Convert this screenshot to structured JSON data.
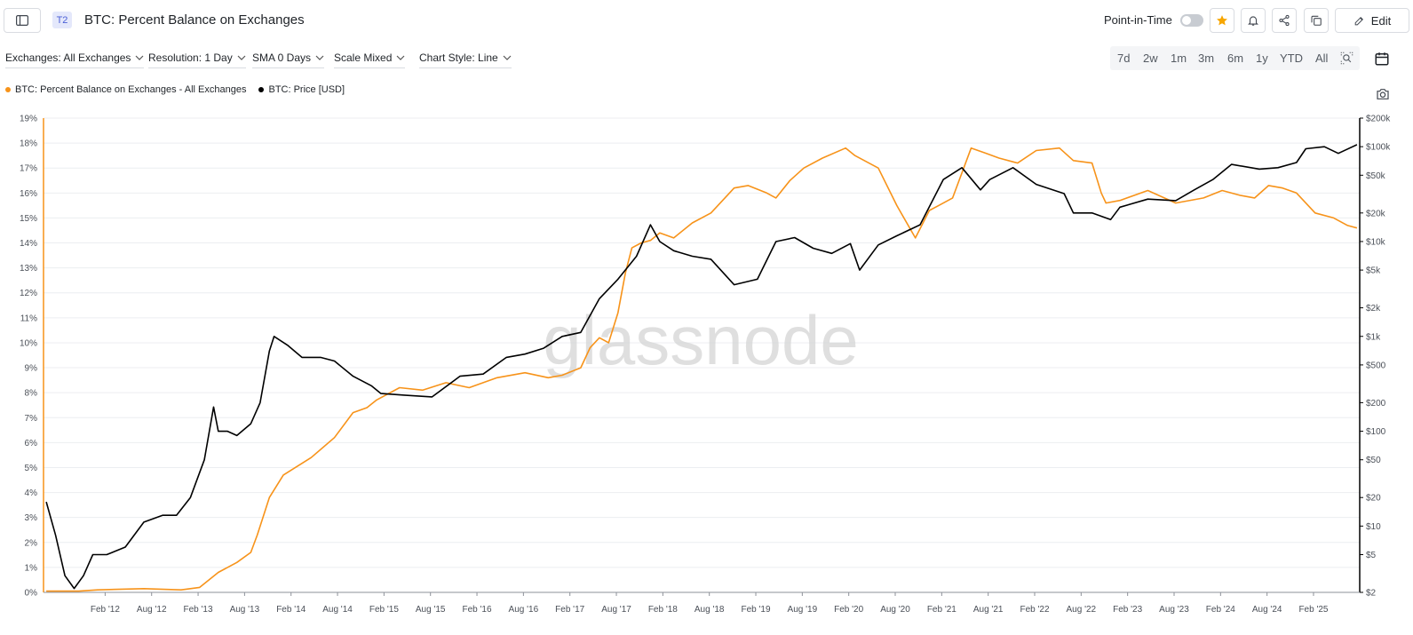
{
  "header": {
    "tier_badge": "T2",
    "title": "BTC: Percent Balance on Exchanges",
    "point_in_time_label": "Point-in-Time",
    "edit_label": "Edit"
  },
  "filters": [
    {
      "label": "Exchanges: All Exchanges"
    },
    {
      "label": "Resolution: 1 Day"
    },
    {
      "label": "SMA 0 Days"
    },
    {
      "label": "Scale Mixed"
    },
    {
      "label": "Chart Style: Line"
    }
  ],
  "time_ranges": [
    "7d",
    "2w",
    "1m",
    "3m",
    "6m",
    "1y",
    "YTD",
    "All"
  ],
  "colors": {
    "balance": "#f7931a",
    "price": "#000000",
    "star": "#f7a600",
    "grid": "#eceef1"
  },
  "watermark": "glassnode",
  "chart_data": {
    "type": "line",
    "legend_placement": "top-left",
    "grid": true,
    "x_ticks": [
      "Feb '12",
      "Aug '12",
      "Feb '13",
      "Aug '13",
      "Feb '14",
      "Aug '14",
      "Feb '15",
      "Aug '15",
      "Feb '16",
      "Aug '16",
      "Feb '17",
      "Aug '17",
      "Feb '18",
      "Aug '18",
      "Feb '19",
      "Aug '19",
      "Feb '20",
      "Aug '20",
      "Feb '21",
      "Aug '21",
      "Feb '22",
      "Aug '22",
      "Feb '23",
      "Aug '23",
      "Feb '24",
      "Aug '24",
      "Feb '25"
    ],
    "x_range": [
      2011.42,
      2025.58
    ],
    "y_left": {
      "ticks": [
        "0%",
        "1%",
        "2%",
        "3%",
        "4%",
        "5%",
        "6%",
        "7%",
        "8%",
        "9%",
        "10%",
        "11%",
        "12%",
        "13%",
        "14%",
        "15%",
        "16%",
        "17%",
        "18%",
        "19%"
      ],
      "range": [
        0,
        19
      ],
      "unit": "%"
    },
    "y_right": {
      "scale": "log",
      "range": [
        2,
        200000
      ],
      "ticks": [
        {
          "label": "$2",
          "value": 2
        },
        {
          "label": "$5",
          "value": 5
        },
        {
          "label": "$10",
          "value": 10
        },
        {
          "label": "$20",
          "value": 20
        },
        {
          "label": "$50",
          "value": 50
        },
        {
          "label": "$100",
          "value": 100
        },
        {
          "label": "$200",
          "value": 200
        },
        {
          "label": "$500",
          "value": 500
        },
        {
          "label": "$1k",
          "value": 1000
        },
        {
          "label": "$2k",
          "value": 2000
        },
        {
          "label": "$5k",
          "value": 5000
        },
        {
          "label": "$10k",
          "value": 10000
        },
        {
          "label": "$20k",
          "value": 20000
        },
        {
          "label": "$50k",
          "value": 50000
        },
        {
          "label": "$100k",
          "value": 100000
        },
        {
          "label": "$200k",
          "value": 200000
        }
      ]
    },
    "series": [
      {
        "name": "BTC: Percent Balance on Exchanges - All Exchanges",
        "axis": "left",
        "x": [
          2011.45,
          2011.6,
          2011.8,
          2012.0,
          2012.5,
          2012.9,
          2013.1,
          2013.3,
          2013.5,
          2013.65,
          2013.72,
          2013.85,
          2014.0,
          2014.3,
          2014.55,
          2014.75,
          2014.9,
          2015.0,
          2015.25,
          2015.5,
          2015.75,
          2016.0,
          2016.3,
          2016.6,
          2016.85,
          2017.0,
          2017.2,
          2017.3,
          2017.4,
          2017.5,
          2017.6,
          2017.68,
          2017.75,
          2017.85,
          2017.95,
          2018.05,
          2018.2,
          2018.4,
          2018.6,
          2018.75,
          2018.85,
          2019.0,
          2019.2,
          2019.3,
          2019.45,
          2019.6,
          2019.8,
          2020.05,
          2020.15,
          2020.4,
          2020.6,
          2020.8,
          2020.95,
          2021.05,
          2021.2,
          2021.4,
          2021.55,
          2021.7,
          2021.9,
          2022.1,
          2022.35,
          2022.5,
          2022.7,
          2022.8,
          2022.85,
          2023.0,
          2023.3,
          2023.6,
          2023.9,
          2024.1,
          2024.3,
          2024.45,
          2024.6,
          2024.75,
          2024.9,
          2025.1,
          2025.3,
          2025.45,
          2025.55
        ],
        "values": [
          0.05,
          0.05,
          0.05,
          0.1,
          0.15,
          0.1,
          0.2,
          0.8,
          1.2,
          1.6,
          2.3,
          3.8,
          4.7,
          5.4,
          6.2,
          7.2,
          7.4,
          7.7,
          8.2,
          8.1,
          8.4,
          8.2,
          8.6,
          8.8,
          8.6,
          8.7,
          9.0,
          9.8,
          10.2,
          10.0,
          11.2,
          12.8,
          13.8,
          14.0,
          14.1,
          14.4,
          14.2,
          14.8,
          15.2,
          15.8,
          16.2,
          16.3,
          16.0,
          15.8,
          16.5,
          17.0,
          17.4,
          17.8,
          17.5,
          17.0,
          15.5,
          14.2,
          15.3,
          15.5,
          15.8,
          17.8,
          17.6,
          17.4,
          17.2,
          17.7,
          17.8,
          17.3,
          17.2,
          16.0,
          15.6,
          15.7,
          16.1,
          15.6,
          15.8,
          16.1,
          15.9,
          15.8,
          16.3,
          16.2,
          16.0,
          15.2,
          15.0,
          14.7,
          14.6
        ]
      },
      {
        "name": "BTC: Price [USD]",
        "axis": "right",
        "x": [
          2011.45,
          2011.55,
          2011.65,
          2011.75,
          2011.85,
          2011.95,
          2012.1,
          2012.3,
          2012.5,
          2012.7,
          2012.85,
          2013.0,
          2013.15,
          2013.25,
          2013.3,
          2013.4,
          2013.5,
          2013.65,
          2013.75,
          2013.85,
          2013.9,
          2014.05,
          2014.2,
          2014.4,
          2014.55,
          2014.75,
          2014.95,
          2015.05,
          2015.3,
          2015.6,
          2015.9,
          2016.15,
          2016.4,
          2016.6,
          2016.8,
          2017.0,
          2017.2,
          2017.4,
          2017.6,
          2017.8,
          2017.95,
          2018.05,
          2018.2,
          2018.4,
          2018.6,
          2018.85,
          2018.95,
          2019.1,
          2019.3,
          2019.5,
          2019.7,
          2019.9,
          2020.1,
          2020.2,
          2020.4,
          2020.6,
          2020.85,
          2021.1,
          2021.3,
          2021.5,
          2021.6,
          2021.85,
          2022.1,
          2022.4,
          2022.5,
          2022.7,
          2022.9,
          2023.0,
          2023.3,
          2023.6,
          2023.8,
          2024.0,
          2024.2,
          2024.5,
          2024.7,
          2024.9,
          2025.0,
          2025.2,
          2025.35,
          2025.55
        ],
        "values": [
          18,
          8,
          3,
          2.2,
          3,
          5,
          5,
          6,
          11,
          13,
          13,
          20,
          50,
          180,
          100,
          100,
          90,
          120,
          200,
          700,
          1000,
          800,
          600,
          600,
          550,
          380,
          300,
          250,
          240,
          230,
          380,
          400,
          600,
          650,
          750,
          1000,
          1100,
          2500,
          4000,
          7000,
          15000,
          10000,
          8000,
          7000,
          6500,
          3500,
          3700,
          4000,
          10000,
          11000,
          8500,
          7500,
          9500,
          5000,
          9200,
          11500,
          15000,
          45000,
          60000,
          35000,
          45000,
          60000,
          40000,
          32000,
          20000,
          20000,
          17000,
          23000,
          28000,
          27000,
          35000,
          45000,
          65000,
          58000,
          60000,
          68000,
          95000,
          100000,
          85000,
          105000
        ]
      }
    ]
  }
}
